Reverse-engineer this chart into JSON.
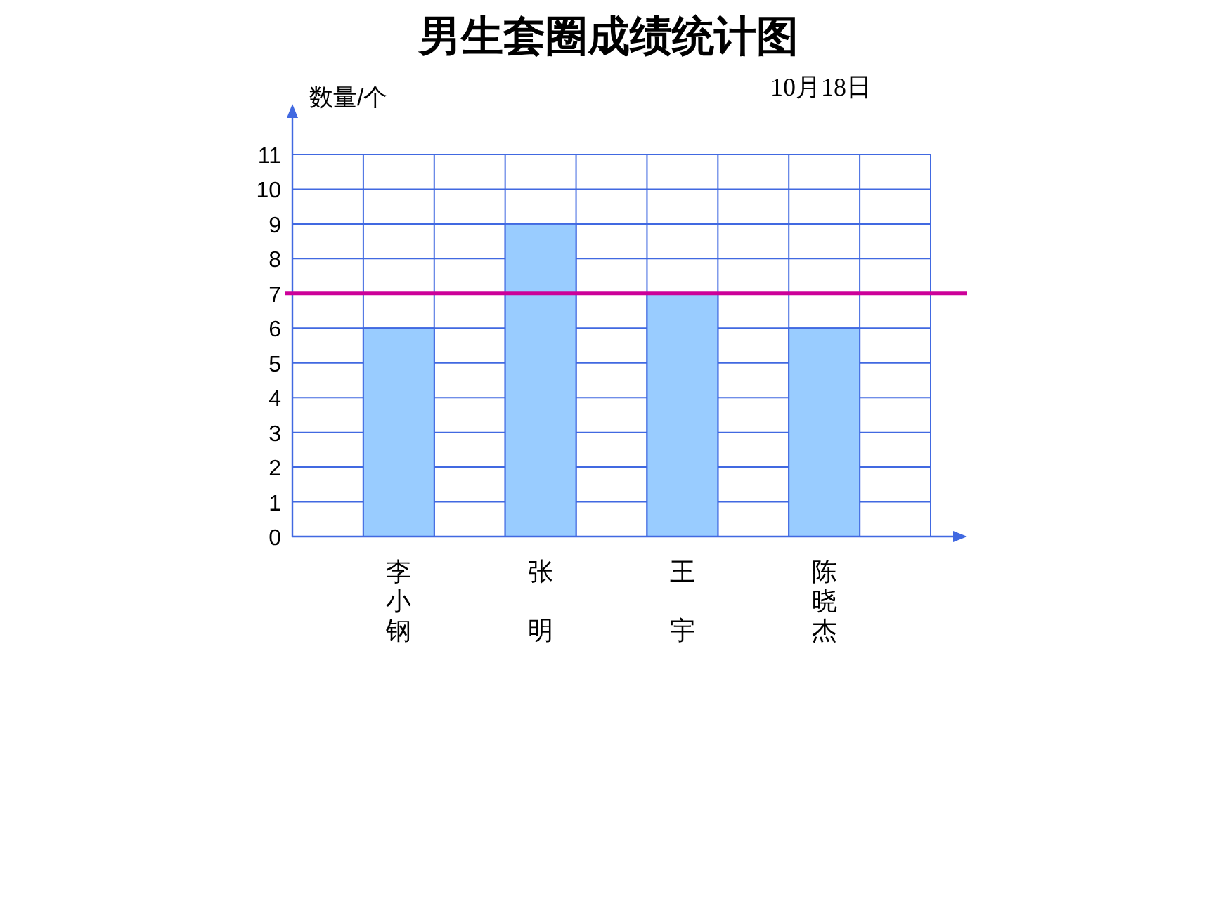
{
  "chart_data": {
    "type": "bar",
    "title": "男生套圈成绩统计图",
    "ylabel": "数量/个",
    "annotations": [
      "10月18日"
    ],
    "categories": [
      "李小钢",
      "张明",
      "王宇",
      "陈晓杰"
    ],
    "values": [
      6,
      9,
      7,
      6
    ],
    "color": "#99ccff",
    "ylim": [
      0,
      11
    ],
    "yticks": [
      0,
      1,
      2,
      3,
      4,
      5,
      6,
      7,
      8,
      9,
      10,
      11
    ],
    "grid": true,
    "ref_lines": [
      {
        "axis": "y",
        "value": 7,
        "color": "#cc0099"
      }
    ]
  }
}
